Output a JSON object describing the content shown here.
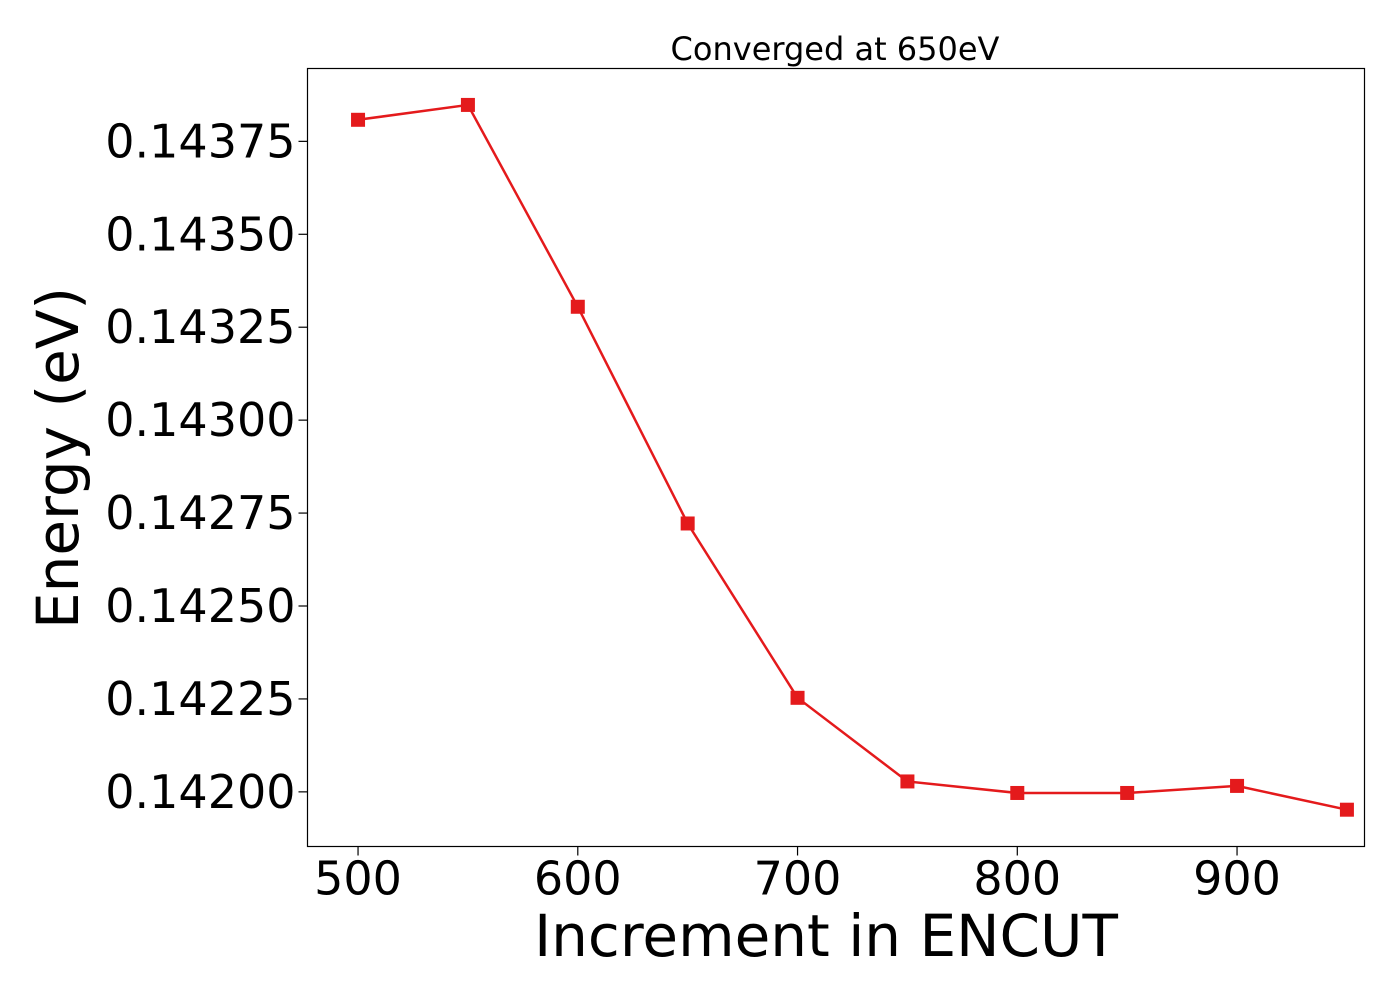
{
  "chart_data": {
    "type": "line",
    "title": "Converged at 650eV",
    "xlabel": "Increment in ENCUT",
    "ylabel": "Energy (eV)",
    "x": [
      500,
      550,
      600,
      650,
      700,
      750,
      800,
      850,
      900,
      950
    ],
    "series": [
      {
        "values": [
          0.143808,
          0.143848,
          0.143305,
          0.142722,
          0.142253,
          0.142028,
          0.141997,
          0.141997,
          0.142016,
          0.141952
        ],
        "color": "#e41a1c",
        "marker": "square"
      }
    ],
    "xlim": [
      477,
      958
    ],
    "ylim": [
      0.141853,
      0.143946
    ],
    "x_ticks": [
      500,
      600,
      700,
      800,
      900
    ],
    "x_tick_labels": [
      "500",
      "600",
      "700",
      "800",
      "900"
    ],
    "y_ticks": [
      0.142,
      0.14225,
      0.1425,
      0.14275,
      0.143,
      0.14325,
      0.1435,
      0.14375
    ],
    "y_tick_labels": [
      "0.14200",
      "0.14225",
      "0.14250",
      "0.14275",
      "0.14300",
      "0.14325",
      "0.14350",
      "0.14375"
    ],
    "grid": false,
    "legend": "none"
  }
}
